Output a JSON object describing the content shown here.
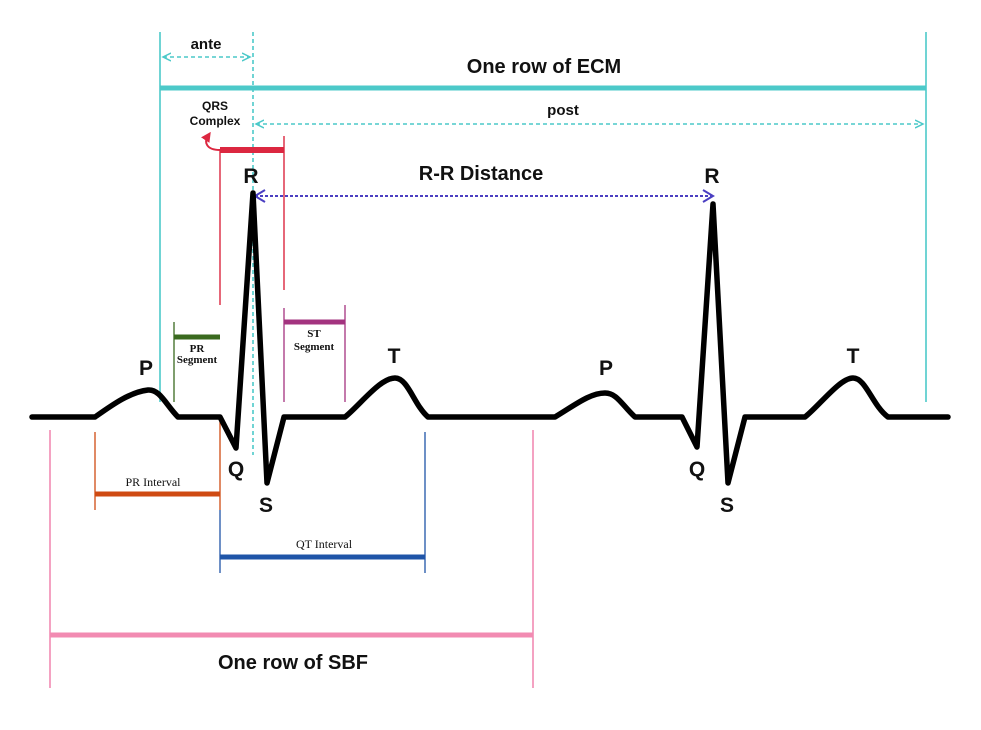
{
  "labels": {
    "ante": "ante",
    "ecm_row": "One row of ECM",
    "post": "post",
    "qrs_line1": "QRS",
    "qrs_line2": "Complex",
    "rr_distance": "R-R Distance",
    "r": "R",
    "q": "Q",
    "s": "S",
    "p": "P",
    "t": "T",
    "pr_segment_line1": "PR",
    "pr_segment_line2": "Segment",
    "st_segment_line1": "ST",
    "st_segment_line2": "Segment",
    "pr_interval": "PR Interval",
    "qt_interval": "QT Interval",
    "sbf_row": "One row of SBF"
  },
  "colors": {
    "ecg_trace": "#000000",
    "ecm": "#4cc9c9",
    "qrs": "#dc2740",
    "rr": "#4b3fc2",
    "pr_segment": "#3a6a1f",
    "st_segment": "#a3337f",
    "pr_interval": "#cf4a12",
    "qt_interval": "#1f55a8",
    "sbf": "#f28bb2"
  }
}
